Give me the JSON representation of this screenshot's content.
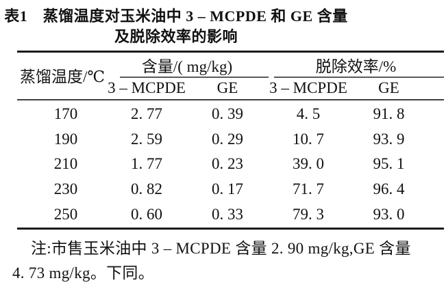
{
  "title": {
    "line1": "表1　蒸馏温度对玉米油中 3 – MCPDE 和 GE 含量",
    "line2": "及脱除效率的影响"
  },
  "table": {
    "col1_header": "蒸馏温度/℃",
    "groups": [
      {
        "label": "含量/( mg/kg)",
        "columns": [
          "3 – MCPDE",
          "GE"
        ]
      },
      {
        "label": "脱除效率/%",
        "columns": [
          "3 – MCPDE",
          "GE"
        ]
      }
    ],
    "rows": [
      {
        "cells": [
          "170",
          "2. 77",
          "0. 39",
          "4. 5",
          "91. 8"
        ]
      },
      {
        "cells": [
          "190",
          "2. 59",
          "0. 29",
          "10. 7",
          "93. 9"
        ]
      },
      {
        "cells": [
          "210",
          "1. 77",
          "0. 23",
          "39. 0",
          "95. 1"
        ]
      },
      {
        "cells": [
          "230",
          "0. 82",
          "0. 17",
          "71. 7",
          "96. 4"
        ]
      },
      {
        "cells": [
          "250",
          "0. 60",
          "0. 33",
          "79. 3",
          "93. 0"
        ]
      }
    ]
  },
  "note": {
    "line1": "注:市售玉米油中 3 – MCPDE 含量 2. 90 mg/kg,GE 含量",
    "line2": "4. 73 mg/kg。下同。"
  },
  "colors": {
    "background": "#ffffff",
    "text": "#111111",
    "rule_heavy": "#1a1a1a",
    "rule_medium": "#3f3f3f",
    "rule_light": "#5a5a5a"
  }
}
